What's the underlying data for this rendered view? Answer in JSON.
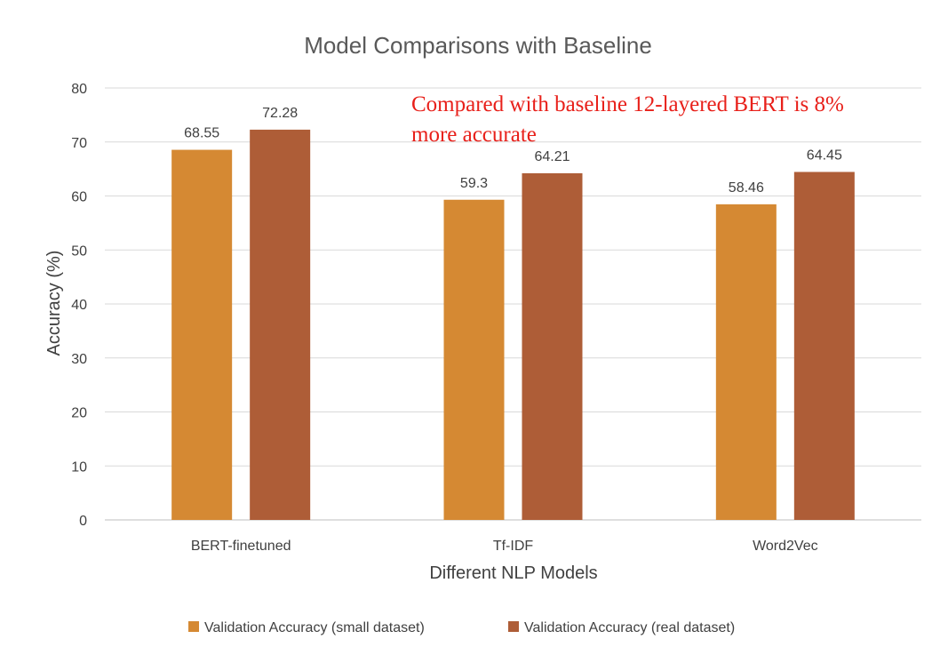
{
  "chart_data": {
    "type": "bar",
    "title": "Model Comparisons with Baseline",
    "xlabel": "Different NLP Models",
    "ylabel": "Accuracy (%)",
    "categories": [
      "BERT-finetuned",
      "Tf-IDF",
      "Word2Vec"
    ],
    "series": [
      {
        "name": "Validation Accuracy (small dataset)",
        "color": "#d58933",
        "values": [
          68.55,
          59.3,
          58.46
        ],
        "labels": [
          "68.55",
          "59.3",
          "58.46"
        ]
      },
      {
        "name": "Validation Accuracy (real dataset)",
        "color": "#ae5d37",
        "values": [
          72.28,
          64.21,
          64.45
        ],
        "labels": [
          "72.28",
          "64.21",
          "64.45"
        ]
      }
    ],
    "ylim": [
      0,
      80
    ],
    "yticks": [
      "0",
      "10",
      "20",
      "30",
      "40",
      "50",
      "60",
      "70",
      "80"
    ],
    "grid": true,
    "legend_position": "bottom",
    "annotation": {
      "lines": [
        "Compared with baseline 12-layered BERT is 8%",
        "more accurate"
      ],
      "color": "#e8201a"
    }
  }
}
